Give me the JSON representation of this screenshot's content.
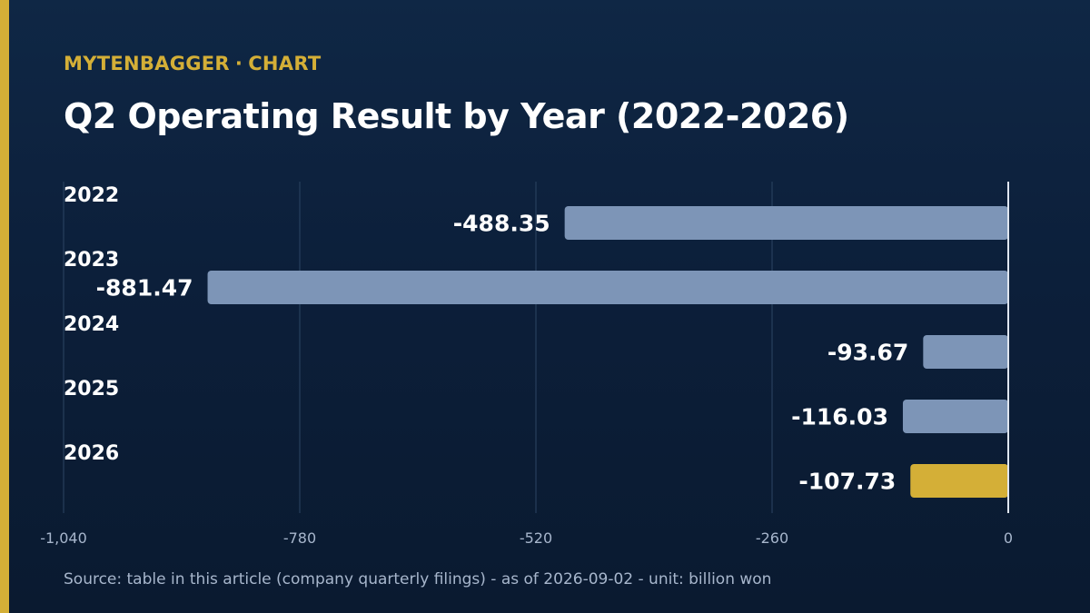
{
  "header": {
    "brand": "MYTENBAGGER",
    "separator": "·",
    "kind": "CHART"
  },
  "colors": {
    "background": "#0c1f3a",
    "accent": "#d4af37",
    "bar": "#7d95b7",
    "highlight_bar": "#d4af37",
    "grid": "#2c4563",
    "label": "#ffffff",
    "tick": "#a7b6cc"
  },
  "chart_data": {
    "type": "bar",
    "orientation": "horizontal",
    "title": "Q2 Operating Result by Year (2022-2026)",
    "categories": [
      "2022",
      "2023",
      "2024",
      "2025",
      "2026"
    ],
    "values": [
      -488.35,
      -881.47,
      -93.67,
      -116.03,
      -107.73
    ],
    "value_labels": [
      "-488.35",
      "-881.47",
      "-93.67",
      "-116.03",
      "-107.73"
    ],
    "highlight": [
      "2026"
    ],
    "xlim": [
      -1040,
      0
    ],
    "xticks": [
      -1040,
      -780,
      -520,
      -260,
      0
    ],
    "xtick_labels": [
      "-1,040",
      "-780",
      "-520",
      "-260",
      "0"
    ],
    "grid": true,
    "xlabel": "",
    "ylabel": ""
  },
  "footer": {
    "source": "Source: table in this article (company quarterly filings) - as of 2026-09-02 - unit: billion won"
  }
}
